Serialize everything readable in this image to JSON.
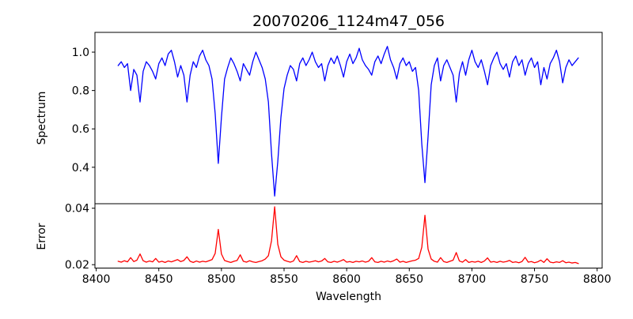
{
  "figure": {
    "background": "#ffffff",
    "axis_color": "#000000"
  },
  "chart_data": {
    "type": "line",
    "title": "20070206_1124m47_056",
    "xlabel": "Wavelength",
    "grid": false,
    "legend": "none",
    "xlim": [
      8399,
      8804
    ],
    "x_ticks": [
      8400,
      8450,
      8500,
      8550,
      8600,
      8650,
      8700,
      8750,
      8800
    ],
    "x": [
      8417.5,
      8420,
      8422.5,
      8425,
      8427.5,
      8430,
      8432.5,
      8435,
      8437.5,
      8440,
      8442.5,
      8445,
      8447.5,
      8450,
      8452.5,
      8455,
      8457.5,
      8460,
      8462.5,
      8465,
      8467.5,
      8470,
      8472.5,
      8475,
      8477.5,
      8480,
      8482.5,
      8485,
      8487.5,
      8490,
      8492.5,
      8495,
      8497.5,
      8500,
      8502.5,
      8505,
      8507.5,
      8510,
      8512.5,
      8515,
      8517.5,
      8520,
      8522.5,
      8525,
      8527.5,
      8530,
      8532.5,
      8535,
      8537.5,
      8540,
      8542.5,
      8545,
      8547.5,
      8550,
      8552.5,
      8555,
      8557.5,
      8560,
      8562.5,
      8565,
      8567.5,
      8570,
      8572.5,
      8575,
      8577.5,
      8580,
      8582.5,
      8585,
      8587.5,
      8590,
      8592.5,
      8595,
      8597.5,
      8600,
      8602.5,
      8605,
      8607.5,
      8610,
      8612.5,
      8615,
      8617.5,
      8620,
      8622.5,
      8625,
      8627.5,
      8630,
      8632.5,
      8635,
      8637.5,
      8640,
      8642.5,
      8645,
      8647.5,
      8650,
      8652.5,
      8655,
      8657.5,
      8660,
      8662.5,
      8665,
      8667.5,
      8670,
      8672.5,
      8675,
      8677.5,
      8680,
      8682.5,
      8685,
      8687.5,
      8690,
      8692.5,
      8695,
      8697.5,
      8700,
      8702.5,
      8705,
      8707.5,
      8710,
      8712.5,
      8715,
      8717.5,
      8720,
      8722.5,
      8725,
      8727.5,
      8730,
      8732.5,
      8735,
      8737.5,
      8740,
      8742.5,
      8745,
      8747.5,
      8750,
      8752.5,
      8755,
      8757.5,
      8760,
      8762.5,
      8765,
      8767.5,
      8770,
      8772.5,
      8775,
      8777.5,
      8780,
      8782.5,
      8785
    ],
    "panels": [
      {
        "name": "spectrum",
        "ylabel": "Spectrum",
        "ylim": [
          0.21,
          1.103
        ],
        "y_ticks": [
          1.0,
          0.8,
          0.6,
          0.4
        ],
        "y_tick_labels": [
          "1.0",
          "0.8",
          "0.6",
          "0.4"
        ],
        "line_color": "#0000ff",
        "absorption_line_centers": [
          8498,
          8542,
          8662
        ],
        "values": [
          0.93,
          0.95,
          0.92,
          0.94,
          0.8,
          0.91,
          0.88,
          0.74,
          0.9,
          0.95,
          0.93,
          0.9,
          0.86,
          0.94,
          0.97,
          0.93,
          0.99,
          1.01,
          0.95,
          0.87,
          0.93,
          0.88,
          0.74,
          0.88,
          0.95,
          0.92,
          0.98,
          1.01,
          0.96,
          0.93,
          0.86,
          0.68,
          0.42,
          0.66,
          0.86,
          0.92,
          0.97,
          0.94,
          0.9,
          0.85,
          0.94,
          0.91,
          0.88,
          0.95,
          1.0,
          0.96,
          0.92,
          0.86,
          0.74,
          0.47,
          0.25,
          0.43,
          0.66,
          0.81,
          0.88,
          0.93,
          0.91,
          0.85,
          0.94,
          0.97,
          0.93,
          0.96,
          1.0,
          0.95,
          0.92,
          0.94,
          0.85,
          0.93,
          0.97,
          0.94,
          0.98,
          0.93,
          0.87,
          0.95,
          0.99,
          0.94,
          0.97,
          1.02,
          0.96,
          0.93,
          0.91,
          0.88,
          0.95,
          0.98,
          0.94,
          0.99,
          1.03,
          0.96,
          0.92,
          0.86,
          0.94,
          0.97,
          0.93,
          0.95,
          0.9,
          0.92,
          0.8,
          0.52,
          0.32,
          0.56,
          0.83,
          0.93,
          0.97,
          0.85,
          0.93,
          0.96,
          0.92,
          0.88,
          0.74,
          0.89,
          0.95,
          0.88,
          0.96,
          1.01,
          0.95,
          0.92,
          0.96,
          0.9,
          0.83,
          0.93,
          0.97,
          1.0,
          0.94,
          0.91,
          0.94,
          0.87,
          0.95,
          0.98,
          0.93,
          0.96,
          0.88,
          0.94,
          0.97,
          0.92,
          0.95,
          0.83,
          0.92,
          0.86,
          0.94,
          0.97,
          1.01,
          0.95,
          0.84,
          0.92,
          0.96,
          0.93,
          0.95,
          0.97
        ]
      },
      {
        "name": "error",
        "ylabel": "Error",
        "ylim": [
          0.0188,
          0.0416
        ],
        "y_ticks": [
          0.04,
          0.02
        ],
        "y_tick_labels": [
          "0.04",
          "0.02"
        ],
        "line_color": "#ff0000",
        "values": [
          0.0212,
          0.0209,
          0.0214,
          0.021,
          0.0225,
          0.0211,
          0.0216,
          0.0238,
          0.0214,
          0.0209,
          0.0213,
          0.021,
          0.0222,
          0.0209,
          0.0212,
          0.0208,
          0.0213,
          0.021,
          0.0214,
          0.0218,
          0.0211,
          0.0215,
          0.0228,
          0.0212,
          0.0208,
          0.0213,
          0.0209,
          0.0212,
          0.021,
          0.0214,
          0.0218,
          0.024,
          0.0325,
          0.0238,
          0.0215,
          0.0211,
          0.0208,
          0.0212,
          0.0215,
          0.0235,
          0.0212,
          0.0209,
          0.0214,
          0.021,
          0.0208,
          0.0211,
          0.0214,
          0.022,
          0.0232,
          0.0285,
          0.0405,
          0.0272,
          0.0228,
          0.0216,
          0.0212,
          0.0209,
          0.0213,
          0.0232,
          0.0211,
          0.0208,
          0.0212,
          0.0209,
          0.0211,
          0.0214,
          0.021,
          0.0213,
          0.0222,
          0.021,
          0.0208,
          0.0212,
          0.0209,
          0.0213,
          0.0218,
          0.0209,
          0.0211,
          0.0208,
          0.0212,
          0.021,
          0.0213,
          0.0209,
          0.0212,
          0.0225,
          0.021,
          0.0208,
          0.0212,
          0.0209,
          0.0213,
          0.021,
          0.0214,
          0.022,
          0.0209,
          0.0212,
          0.0208,
          0.0211,
          0.0214,
          0.0216,
          0.0222,
          0.0262,
          0.0375,
          0.0255,
          0.022,
          0.0212,
          0.0209,
          0.0225,
          0.0211,
          0.0208,
          0.0212,
          0.0216,
          0.0243,
          0.0213,
          0.0209,
          0.0218,
          0.0208,
          0.0211,
          0.0209,
          0.0212,
          0.0208,
          0.0213,
          0.0224,
          0.0209,
          0.0211,
          0.0208,
          0.0212,
          0.0209,
          0.0211,
          0.0215,
          0.0208,
          0.021,
          0.0207,
          0.0211,
          0.0226,
          0.0209,
          0.0211,
          0.0207,
          0.021,
          0.0216,
          0.0208,
          0.0221,
          0.0209,
          0.0207,
          0.021,
          0.0208,
          0.0214,
          0.0207,
          0.0209,
          0.0206,
          0.0208,
          0.0204
        ]
      }
    ]
  }
}
